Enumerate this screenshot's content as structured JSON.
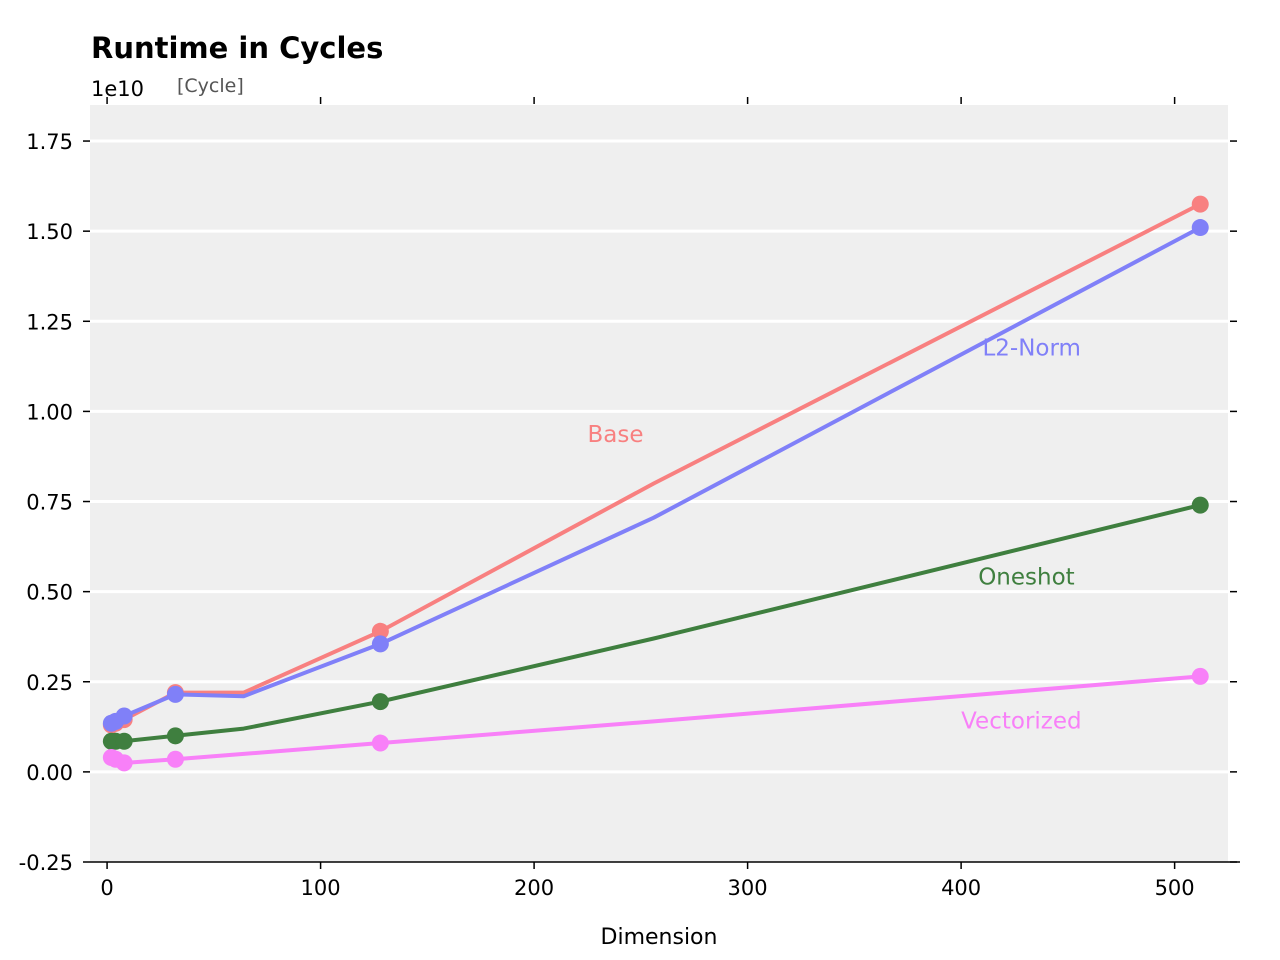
{
  "chart_data": {
    "type": "line",
    "title": "Runtime in Cycles",
    "ylabel": "[Cycle]",
    "y_offset_text": "1e10",
    "xlabel": "Dimension",
    "xlim": [
      -8,
      525
    ],
    "ylim": [
      -0.25,
      1.85
    ],
    "xticks": [
      0,
      100,
      200,
      300,
      400,
      500
    ],
    "yticks": [
      -0.25,
      0.0,
      0.25,
      0.5,
      0.75,
      1.0,
      1.25,
      1.5,
      1.75
    ],
    "ytick_labels": [
      "-0.25",
      "0.00",
      "0.25",
      "0.50",
      "0.75",
      "1.00",
      "1.25",
      "1.50",
      "1.75"
    ],
    "grid": "horizontal",
    "background": "#efefef",
    "series": [
      {
        "name": "Base",
        "color": "#f88080",
        "x": [
          2,
          4,
          8,
          32,
          64,
          128,
          256,
          512
        ],
        "y": [
          0.13,
          0.135,
          0.145,
          0.22,
          0.22,
          0.39,
          0.8,
          1.575
        ],
        "markers": [
          true,
          true,
          true,
          true,
          false,
          true,
          false,
          true
        ]
      },
      {
        "name": "L2-Norm",
        "color": "#8080f8",
        "x": [
          2,
          4,
          8,
          32,
          64,
          128,
          256,
          512
        ],
        "y": [
          0.135,
          0.14,
          0.155,
          0.215,
          0.21,
          0.355,
          0.705,
          1.51
        ],
        "markers": [
          true,
          true,
          true,
          true,
          false,
          true,
          false,
          true
        ]
      },
      {
        "name": "Oneshot",
        "color": "#3f7f3f",
        "x": [
          2,
          4,
          8,
          32,
          64,
          128,
          256,
          512
        ],
        "y": [
          0.085,
          0.085,
          0.085,
          0.1,
          0.12,
          0.195,
          0.37,
          0.74
        ],
        "markers": [
          true,
          true,
          true,
          true,
          false,
          true,
          false,
          true
        ]
      },
      {
        "name": "Vectorized",
        "color": "#f880f8",
        "x": [
          2,
          4,
          8,
          32,
          64,
          128,
          256,
          512
        ],
        "y": [
          0.04,
          0.035,
          0.025,
          0.035,
          0.05,
          0.08,
          0.14,
          0.265
        ],
        "markers": [
          true,
          true,
          true,
          true,
          false,
          true,
          false,
          true
        ]
      }
    ],
    "annotations": [
      {
        "text": "Base",
        "x": 225,
        "y": 0.915,
        "series": 0
      },
      {
        "text": "L2-Norm",
        "x": 410,
        "y": 1.155,
        "series": 1
      },
      {
        "text": "Oneshot",
        "x": 408,
        "y": 0.52,
        "series": 2
      },
      {
        "text": "Vectorized",
        "x": 400,
        "y": 0.12,
        "series": 3
      }
    ]
  }
}
